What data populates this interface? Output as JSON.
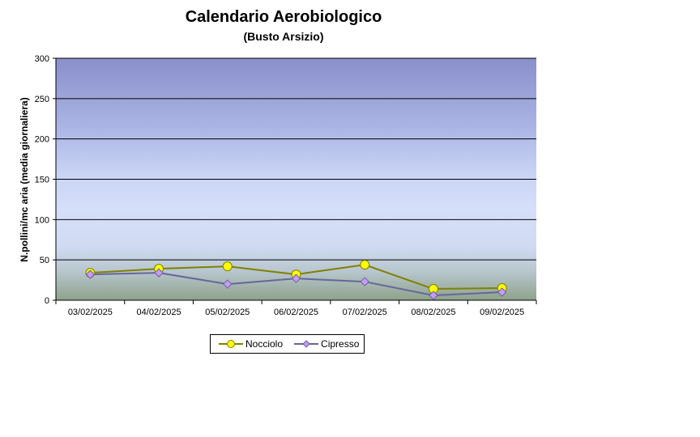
{
  "chart_data": {
    "type": "line",
    "title": "Calendario Aerobiologico",
    "subtitle": "(Busto Arsizio)",
    "ylabel": "N.pollini/mc aria (media giornaliera)",
    "xlabel": "",
    "categories": [
      "03/02/2025",
      "04/02/2025",
      "05/02/2025",
      "06/02/2025",
      "07/02/2025",
      "08/02/2025",
      "09/02/2025"
    ],
    "ylim": [
      0,
      300
    ],
    "yticks": [
      "0",
      "50",
      "100",
      "150",
      "200",
      "250",
      "300"
    ],
    "grid": true,
    "legend_position": "bottom",
    "series": [
      {
        "name": "Nocciolo",
        "values": [
          34,
          39,
          42,
          32,
          44,
          14,
          15
        ],
        "color": "#808000",
        "marker": "circle",
        "marker_color": "#FFFF00"
      },
      {
        "name": "Cipresso",
        "values": [
          32,
          34,
          20,
          27,
          23,
          6,
          10
        ],
        "color": "#666699",
        "marker": "diamond",
        "marker_color": "#CC99FF"
      }
    ]
  }
}
